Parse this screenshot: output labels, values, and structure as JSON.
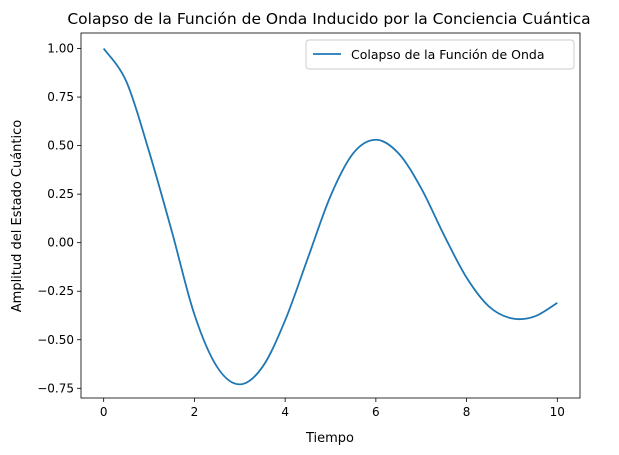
{
  "chart_data": {
    "type": "line",
    "title": "Colapso de la Función de Onda Inducido por la Conciencia Cuántica",
    "xlabel": "Tiempo",
    "ylabel": "Amplitud del Estado Cuántico",
    "xlim": [
      -0.5,
      10.5
    ],
    "ylim": [
      -0.8,
      1.08
    ],
    "xticks": [
      0,
      2,
      4,
      6,
      8,
      10
    ],
    "xtick_labels": [
      "0",
      "2",
      "4",
      "6",
      "8",
      "10"
    ],
    "yticks": [
      -0.75,
      -0.5,
      -0.25,
      0.0,
      0.25,
      0.5,
      0.75,
      1.0
    ],
    "ytick_labels": [
      "−0.75",
      "−0.50",
      "−0.25",
      "0.00",
      "0.25",
      "0.50",
      "0.75",
      "1.00"
    ],
    "grid": false,
    "legend_position": "top-right",
    "series": [
      {
        "name": "Colapso de la Función de Onda",
        "color": "#1f77b4",
        "x": [
          0,
          0.5,
          1,
          1.5,
          2,
          2.5,
          3,
          3.5,
          4,
          4.5,
          5,
          5.5,
          6,
          6.5,
          7,
          7.5,
          8,
          8.5,
          9,
          9.5,
          10
        ],
        "y": [
          1.0,
          0.83,
          0.47,
          0.06,
          -0.37,
          -0.64,
          -0.73,
          -0.64,
          -0.4,
          -0.08,
          0.24,
          0.46,
          0.53,
          0.46,
          0.28,
          0.04,
          -0.18,
          -0.33,
          -0.39,
          -0.38,
          -0.31
        ]
      }
    ]
  }
}
